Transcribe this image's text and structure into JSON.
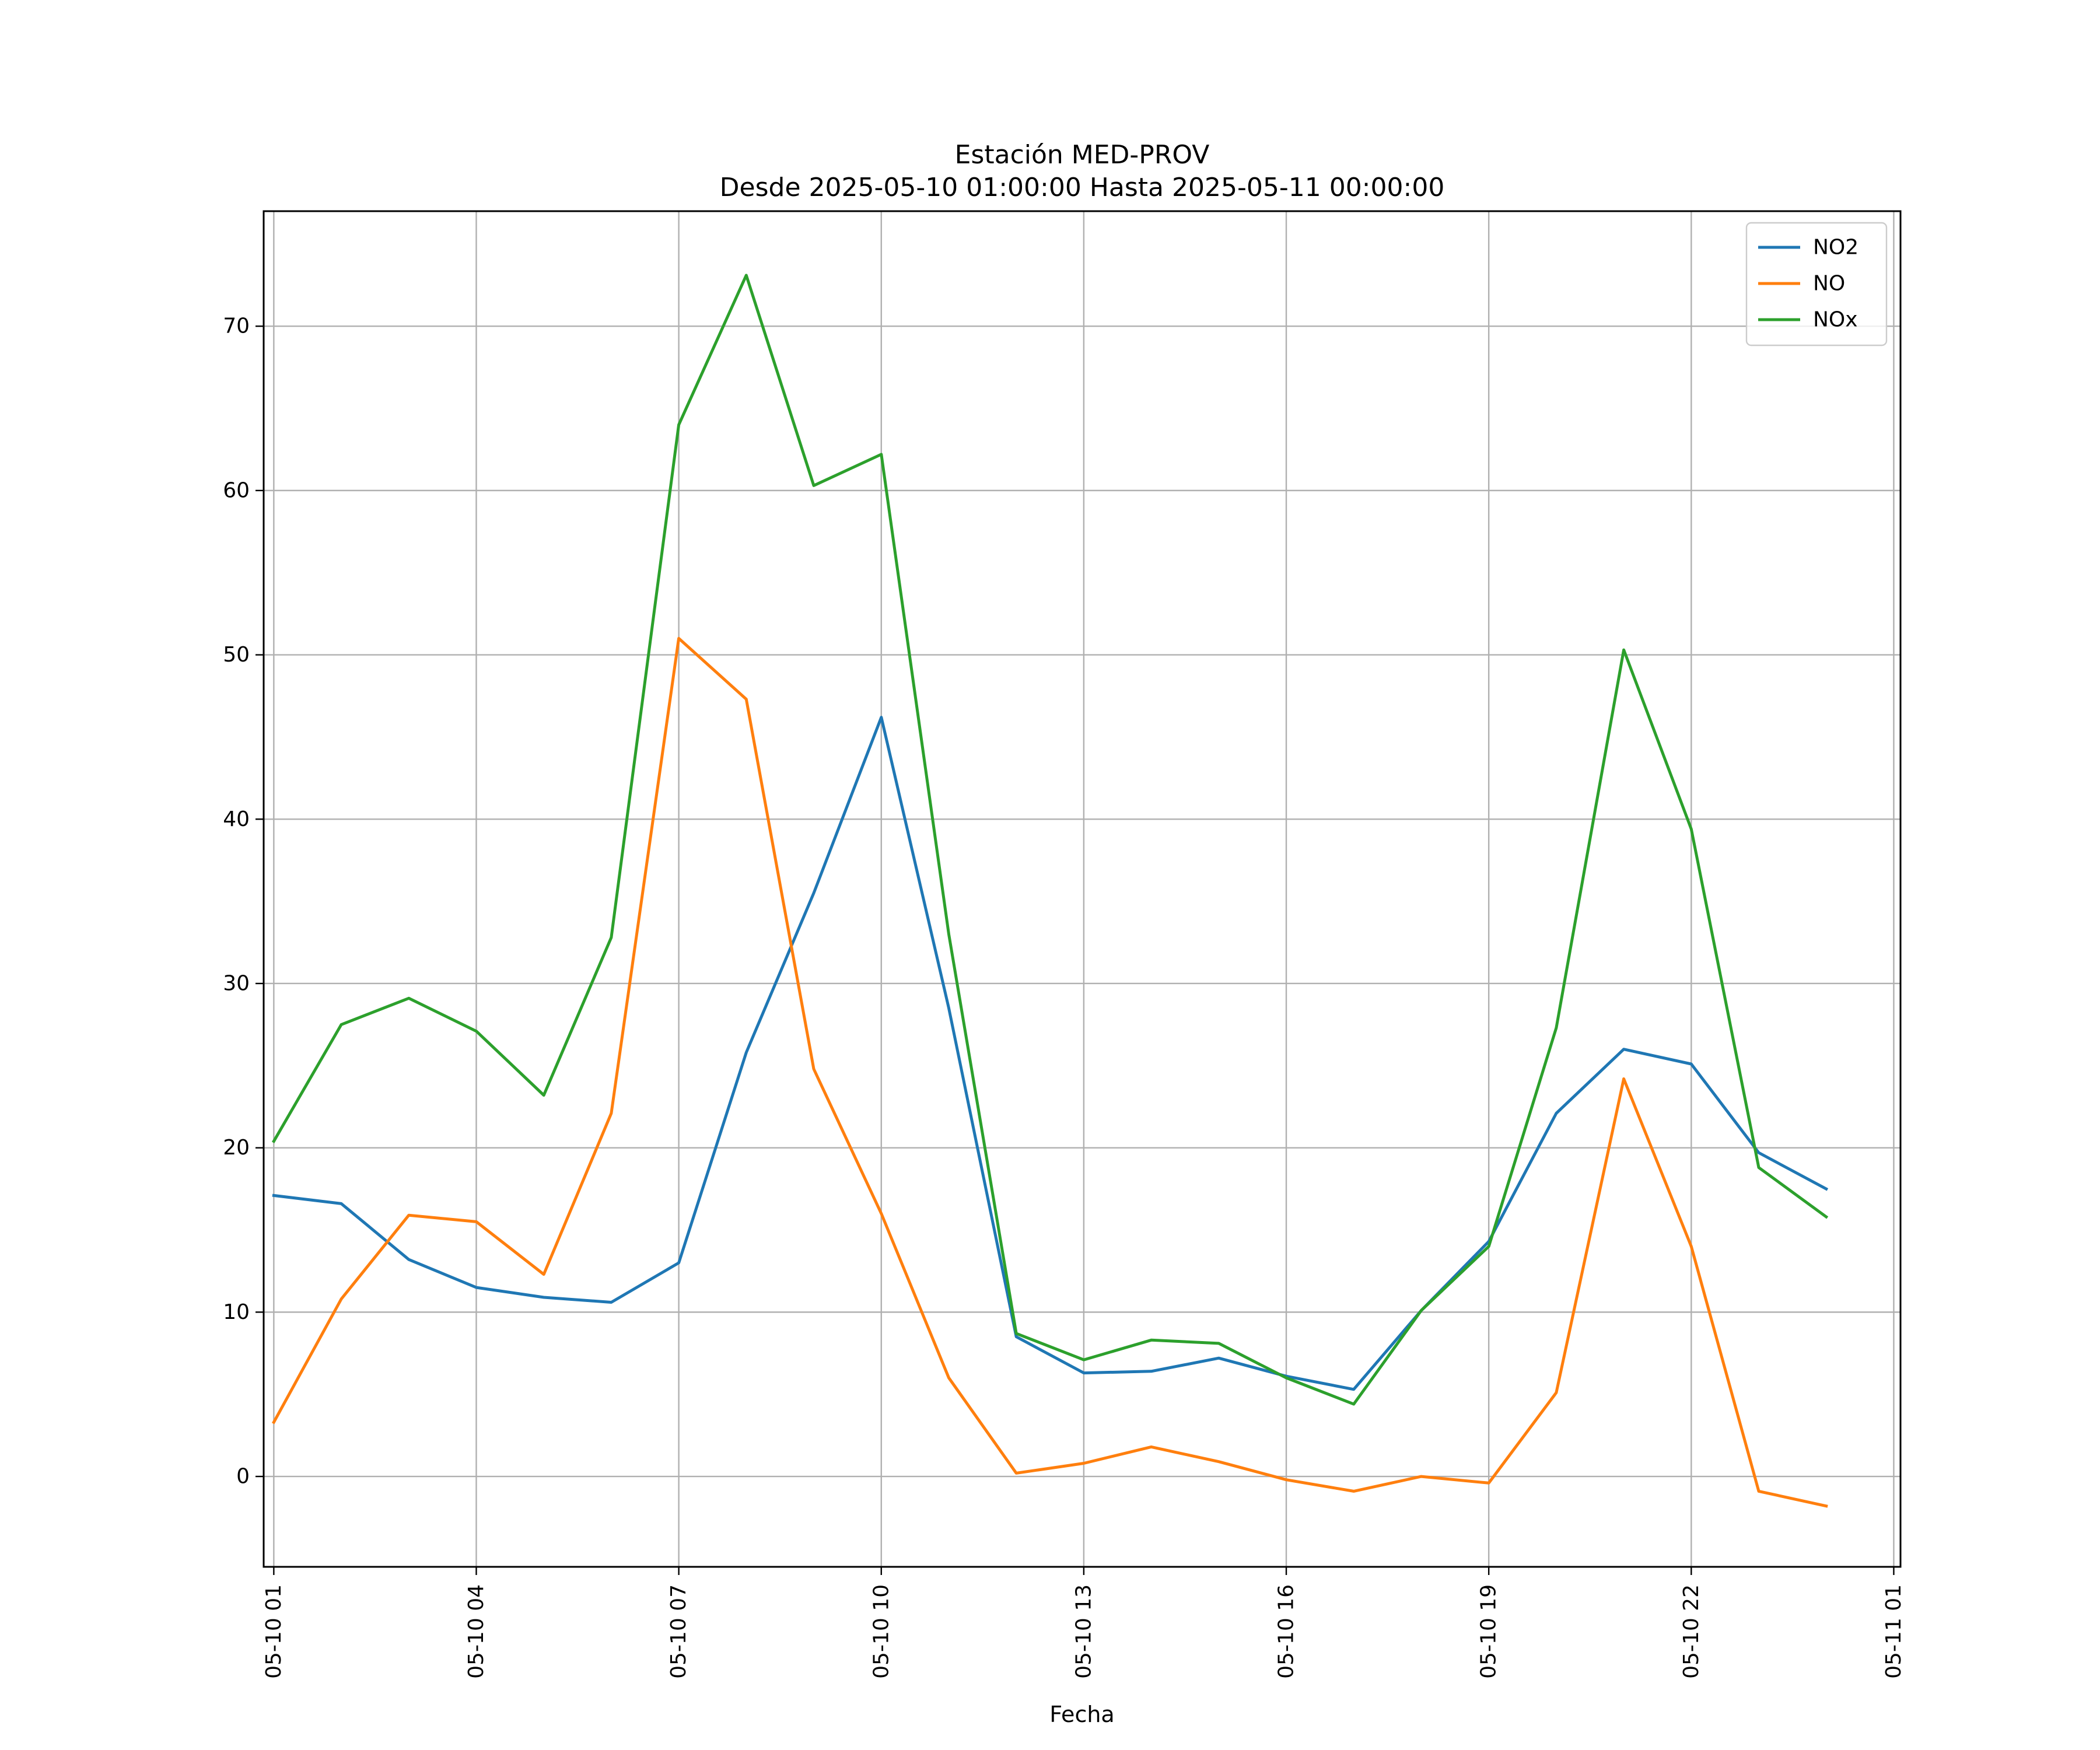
{
  "chart_data": {
    "type": "line",
    "title_line1": "Estación MED-PROV",
    "title_line2": "Desde 2025-05-10 01:00:00 Hasta 2025-05-11 00:00:00",
    "xlabel": "Fecha",
    "ylabel": "",
    "ylim": [
      -5.5,
      77
    ],
    "yticks": [
      0,
      10,
      20,
      30,
      40,
      50,
      60,
      70
    ],
    "xlim_hours": [
      -0.15,
      24.1
    ],
    "xticks": [
      {
        "hour": 0,
        "label": "05-10 01"
      },
      {
        "hour": 3,
        "label": "05-10 04"
      },
      {
        "hour": 6,
        "label": "05-10 07"
      },
      {
        "hour": 9,
        "label": "05-10 10"
      },
      {
        "hour": 12,
        "label": "05-10 13"
      },
      {
        "hour": 15,
        "label": "05-10 16"
      },
      {
        "hour": 18,
        "label": "05-10 19"
      },
      {
        "hour": 21,
        "label": "05-10 22"
      },
      {
        "hour": 24,
        "label": "05-11 01"
      }
    ],
    "x": [
      "2025-05-10 01:00",
      "2025-05-10 02:00",
      "2025-05-10 03:00",
      "2025-05-10 04:00",
      "2025-05-10 05:00",
      "2025-05-10 06:00",
      "2025-05-10 07:00",
      "2025-05-10 08:00",
      "2025-05-10 09:00",
      "2025-05-10 10:00",
      "2025-05-10 11:00",
      "2025-05-10 12:00",
      "2025-05-10 13:00",
      "2025-05-10 14:00",
      "2025-05-10 15:00",
      "2025-05-10 16:00",
      "2025-05-10 17:00",
      "2025-05-10 18:00",
      "2025-05-10 19:00",
      "2025-05-10 20:00",
      "2025-05-10 21:00",
      "2025-05-10 22:00",
      "2025-05-10 23:00",
      "2025-05-11 00:00"
    ],
    "series": [
      {
        "name": "NO2",
        "color": "#1f77b4",
        "values": [
          17.1,
          16.6,
          13.2,
          11.5,
          10.9,
          10.6,
          13.0,
          25.8,
          35.5,
          46.2,
          28.5,
          8.5,
          6.3,
          6.4,
          7.2,
          6.1,
          5.3,
          10.1,
          14.3,
          22.1,
          26.0,
          25.1,
          19.7,
          17.5
        ]
      },
      {
        "name": "NO",
        "color": "#ff7f0e",
        "values": [
          3.3,
          10.8,
          15.9,
          15.5,
          12.3,
          22.1,
          51.0,
          47.3,
          24.8,
          16.0,
          6.0,
          0.2,
          0.8,
          1.8,
          0.9,
          -0.2,
          -0.9,
          0.0,
          -0.4,
          5.1,
          24.2,
          14.0,
          -0.9,
          -1.8
        ]
      },
      {
        "name": "NOx",
        "color": "#2ca02c",
        "values": [
          20.4,
          27.5,
          29.1,
          27.1,
          23.2,
          32.8,
          64.0,
          73.1,
          60.3,
          62.2,
          33.0,
          8.7,
          7.1,
          8.3,
          8.1,
          6.0,
          4.4,
          10.1,
          14.0,
          27.3,
          50.3,
          39.4,
          18.8,
          15.8
        ]
      }
    ],
    "grid": true,
    "legend_position": "top-right"
  }
}
